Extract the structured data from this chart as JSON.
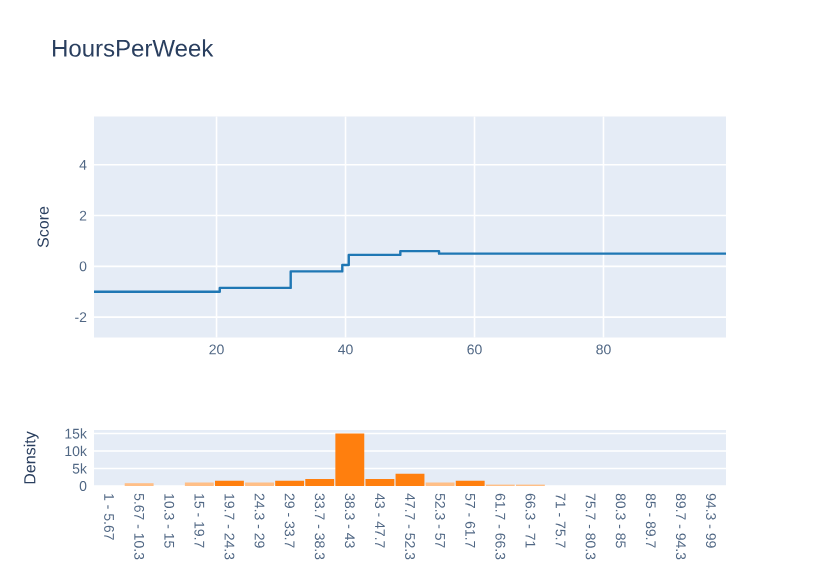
{
  "chart_data": [
    {
      "type": "step",
      "title": "HoursPerWeek",
      "ylabel": "Score",
      "grid": true,
      "xlim": [
        1,
        99
      ],
      "ylim": [
        -2.8,
        5.9
      ],
      "xticks": [
        20,
        40,
        60,
        80
      ],
      "yticks": [
        -2,
        0,
        2,
        4
      ],
      "series": [
        {
          "color": "#1f77b4",
          "x": [
            1,
            20.5,
            31.5,
            39.5,
            40.5,
            48.5,
            54.5,
            99
          ],
          "values": [
            -1,
            -0.85,
            -0.2,
            0.05,
            0.45,
            0.6,
            0.5,
            0.5
          ]
        }
      ]
    },
    {
      "type": "bar",
      "ylabel": "Density",
      "grid": "y",
      "categories": [
        "1 - 5.67",
        "5.67 - 10.3",
        "10.3 - 15",
        "15 - 19.7",
        "19.7 - 24.3",
        "24.3 - 29",
        "29 - 33.7",
        "33.7 - 38.3",
        "38.3 - 43",
        "43 - 47.7",
        "47.7 - 52.3",
        "52.3 - 57",
        "57 - 61.7",
        "61.7 - 66.3",
        "66.3 - 71",
        "71 - 75.7",
        "75.7 - 80.3",
        "80.3 - 85",
        "85 - 89.7",
        "89.7 - 94.3",
        "94.3 - 99"
      ],
      "values": [
        0,
        800,
        0,
        1000,
        1500,
        1000,
        1500,
        2000,
        15000,
        2000,
        3500,
        1000,
        1500,
        400,
        400,
        0,
        0,
        0,
        0,
        0,
        0
      ],
      "colors": [
        "#ffbf87",
        "#ffbf87",
        "#ffbf87",
        "#ffbf87",
        "#ff7f0e",
        "#ffbf87",
        "#ff7f0e",
        "#ff7f0e",
        "#ff7f0e",
        "#ff7f0e",
        "#ff7f0e",
        "#ffbf87",
        "#ff7f0e",
        "#ffbf87",
        "#ffbf87",
        "#ffbf87",
        "#ffbf87",
        "#ffbf87",
        "#ffbf87",
        "#ffbf87",
        "#ffbf87"
      ],
      "ylim": [
        0,
        16000
      ],
      "yticks": [
        0,
        {
          "value": 5000,
          "label": "5k"
        },
        {
          "value": 10000,
          "label": "10k"
        },
        {
          "value": 15000,
          "label": "15k"
        }
      ]
    }
  ]
}
